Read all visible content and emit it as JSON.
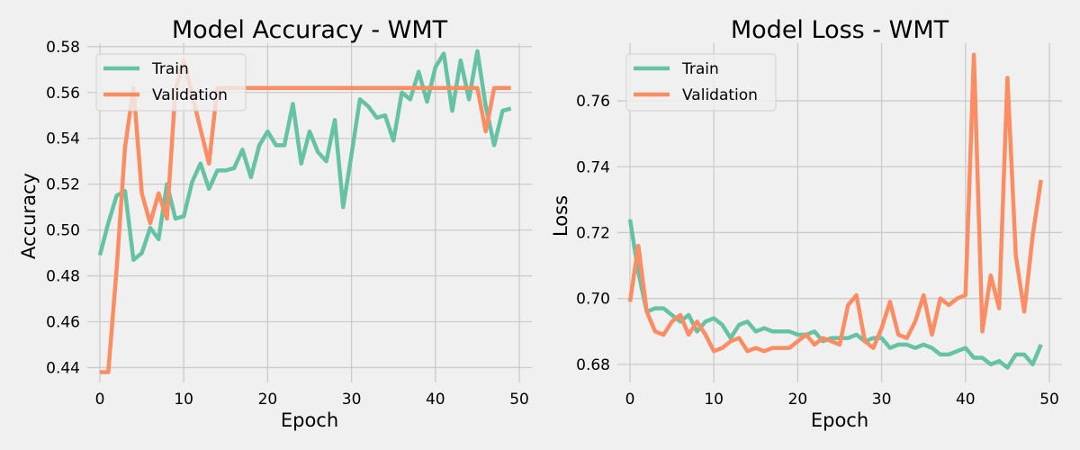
{
  "colors": {
    "train": "#66c2a5",
    "validation": "#fc8d62",
    "background": "#f0f0f0",
    "grid": "#cbcbcb"
  },
  "chart_data": [
    {
      "type": "line",
      "title": "Model Accuracy - WMT",
      "xlabel": "Epoch",
      "ylabel": "Accuracy",
      "xlim": [
        -1.5,
        51.5
      ],
      "ylim": [
        0.4335,
        0.5815
      ],
      "xticks": [
        0,
        10,
        20,
        30,
        40,
        50
      ],
      "xtick_labels": [
        "0",
        "10",
        "20",
        "30",
        "40",
        "50"
      ],
      "yticks": [
        0.44,
        0.46,
        0.48,
        0.5,
        0.52,
        0.54,
        0.56,
        0.58
      ],
      "ytick_labels": [
        "0.44",
        "0.46",
        "0.48",
        "0.50",
        "0.52",
        "0.54",
        "0.56",
        "0.58"
      ],
      "grid": true,
      "legend": "top-left",
      "x": [
        0,
        1,
        2,
        3,
        4,
        5,
        6,
        7,
        8,
        9,
        10,
        11,
        12,
        13,
        14,
        15,
        16,
        17,
        18,
        19,
        20,
        21,
        22,
        23,
        24,
        25,
        26,
        27,
        28,
        29,
        30,
        31,
        32,
        33,
        34,
        35,
        36,
        37,
        38,
        39,
        40,
        41,
        42,
        43,
        44,
        45,
        46,
        47,
        48,
        49
      ],
      "series": [
        {
          "name": "Train",
          "color_key": "train",
          "values": [
            0.489,
            0.503,
            0.515,
            0.517,
            0.487,
            0.49,
            0.501,
            0.496,
            0.52,
            0.505,
            0.506,
            0.521,
            0.529,
            0.518,
            0.526,
            0.526,
            0.527,
            0.535,
            0.523,
            0.537,
            0.543,
            0.537,
            0.537,
            0.555,
            0.529,
            0.543,
            0.534,
            0.53,
            0.548,
            0.51,
            0.533,
            0.557,
            0.554,
            0.549,
            0.55,
            0.539,
            0.56,
            0.557,
            0.569,
            0.556,
            0.571,
            0.577,
            0.552,
            0.574,
            0.557,
            0.578,
            0.554,
            0.537,
            0.552,
            0.553
          ]
        },
        {
          "name": "Validation",
          "color_key": "validation",
          "values": [
            0.438,
            0.438,
            0.483,
            0.536,
            0.562,
            0.516,
            0.503,
            0.516,
            0.505,
            0.561,
            0.574,
            0.559,
            0.544,
            0.529,
            0.562,
            0.562,
            0.562,
            0.562,
            0.562,
            0.562,
            0.562,
            0.562,
            0.562,
            0.562,
            0.562,
            0.562,
            0.562,
            0.562,
            0.562,
            0.562,
            0.562,
            0.562,
            0.562,
            0.562,
            0.562,
            0.562,
            0.562,
            0.562,
            0.562,
            0.562,
            0.562,
            0.562,
            0.562,
            0.562,
            0.562,
            0.562,
            0.543,
            0.562,
            0.562,
            0.562
          ]
        }
      ]
    },
    {
      "type": "line",
      "title": "Model Loss - WMT",
      "xlabel": "Epoch",
      "ylabel": "Loss",
      "xlim": [
        -1.5,
        51.5
      ],
      "ylim": [
        0.6745,
        0.7775
      ],
      "xticks": [
        0,
        10,
        20,
        30,
        40,
        50
      ],
      "xtick_labels": [
        "0",
        "10",
        "20",
        "30",
        "40",
        "50"
      ],
      "yticks": [
        0.68,
        0.7,
        0.72,
        0.74,
        0.76
      ],
      "ytick_labels": [
        "0.68",
        "0.70",
        "0.72",
        "0.74",
        "0.76"
      ],
      "grid": true,
      "legend": "top-left",
      "x": [
        0,
        1,
        2,
        3,
        4,
        5,
        6,
        7,
        8,
        9,
        10,
        11,
        12,
        13,
        14,
        15,
        16,
        17,
        18,
        19,
        20,
        21,
        22,
        23,
        24,
        25,
        26,
        27,
        28,
        29,
        30,
        31,
        32,
        33,
        34,
        35,
        36,
        37,
        38,
        39,
        40,
        41,
        42,
        43,
        44,
        45,
        46,
        47,
        48,
        49
      ],
      "series": [
        {
          "name": "Train",
          "color_key": "train",
          "values": [
            0.724,
            0.708,
            0.696,
            0.697,
            0.697,
            0.695,
            0.693,
            0.695,
            0.69,
            0.693,
            0.694,
            0.692,
            0.688,
            0.692,
            0.693,
            0.69,
            0.691,
            0.69,
            0.69,
            0.69,
            0.689,
            0.689,
            0.69,
            0.687,
            0.688,
            0.688,
            0.688,
            0.689,
            0.687,
            0.688,
            0.688,
            0.685,
            0.686,
            0.686,
            0.685,
            0.686,
            0.685,
            0.683,
            0.683,
            0.684,
            0.685,
            0.682,
            0.682,
            0.68,
            0.681,
            0.679,
            0.683,
            0.683,
            0.68,
            0.686
          ]
        },
        {
          "name": "Validation",
          "color_key": "validation",
          "values": [
            0.699,
            0.716,
            0.696,
            0.69,
            0.689,
            0.693,
            0.695,
            0.689,
            0.693,
            0.689,
            0.684,
            0.685,
            0.687,
            0.688,
            0.684,
            0.685,
            0.684,
            0.685,
            0.685,
            0.685,
            0.687,
            0.689,
            0.686,
            0.688,
            0.687,
            0.686,
            0.698,
            0.701,
            0.687,
            0.685,
            0.691,
            0.699,
            0.689,
            0.688,
            0.693,
            0.701,
            0.689,
            0.7,
            0.698,
            0.7,
            0.701,
            0.774,
            0.69,
            0.707,
            0.697,
            0.767,
            0.713,
            0.696,
            0.719,
            0.736
          ]
        }
      ]
    }
  ]
}
